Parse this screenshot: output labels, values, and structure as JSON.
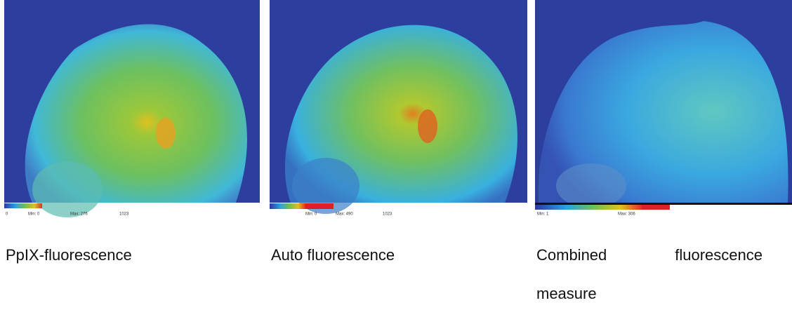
{
  "panels": [
    {
      "colorbar_labels": [
        "0",
        "Min: 0",
        "Max: 276",
        "1023"
      ],
      "caption": "PpIX-fluorescence"
    },
    {
      "colorbar_labels": [
        "Min: 0",
        "Max: 490",
        "1023"
      ],
      "caption": "Auto fluorescence"
    },
    {
      "colorbar_labels": [
        "Min: 1",
        "Max: 306"
      ],
      "caption": "Combined fluorescence measure"
    }
  ]
}
